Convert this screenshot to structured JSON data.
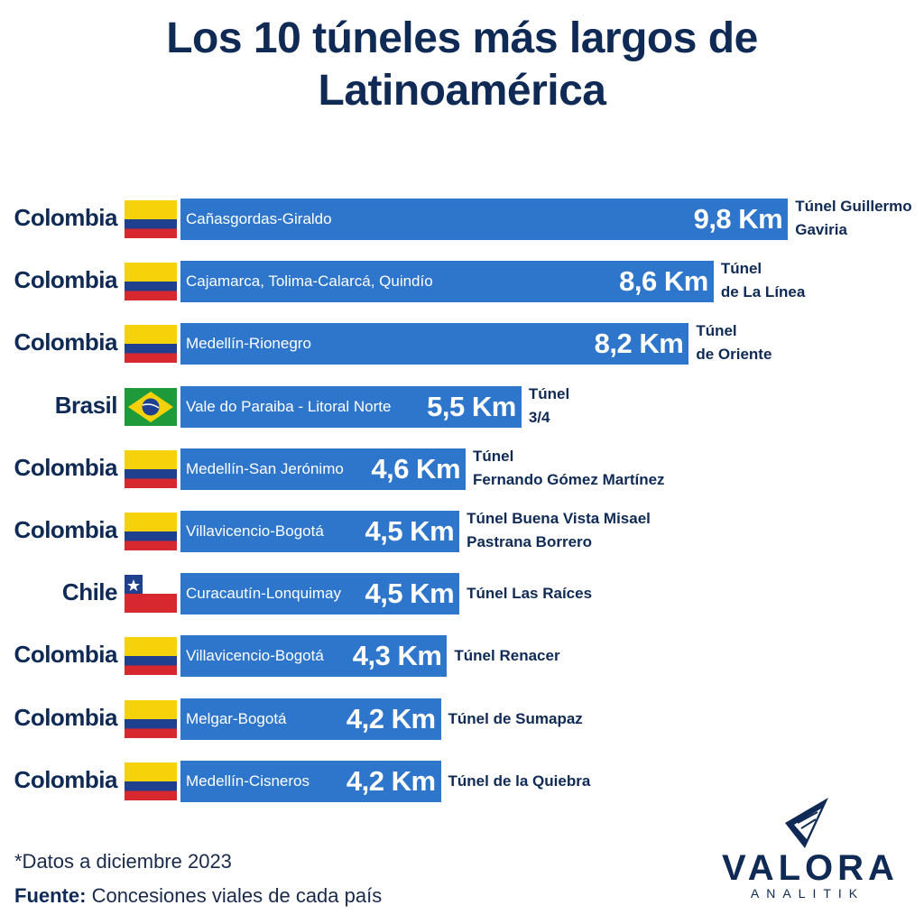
{
  "title_line1": "Los 10 túneles más largos de",
  "title_line2": "Latinoamérica",
  "footnote": "*Datos a diciembre 2023",
  "source_label": "Fuente:",
  "source_text": "Concesiones viales de cada país",
  "logo": {
    "word": "VALORA",
    "sub": "ANALITIK",
    "mark": "valora-chevron-logo"
  },
  "colors": {
    "bar": "#2e76cc",
    "title": "#0f2a55",
    "bar_text": "#ffffff"
  },
  "chart_data": {
    "type": "bar",
    "orientation": "horizontal",
    "unit": "Km",
    "title": "Los 10 túneles más largos de Latinoamérica",
    "rows": [
      {
        "country": "Colombia",
        "flag": "colombia-flag",
        "route": "Cañasgordas-Giraldo",
        "value": 9.8,
        "label": "9,8 Km",
        "tunnel": "Túnel Guillermo\nGaviria"
      },
      {
        "country": "Colombia",
        "flag": "colombia-flag",
        "route": "Cajamarca, Tolima-Calarcá, Quindío",
        "value": 8.6,
        "label": "8,6 Km",
        "tunnel": "Túnel\nde La Línea"
      },
      {
        "country": "Colombia",
        "flag": "colombia-flag",
        "route": "Medellín-Rionegro",
        "value": 8.2,
        "label": "8,2 Km",
        "tunnel": "Túnel\nde Oriente"
      },
      {
        "country": "Brasil",
        "flag": "brazil-flag",
        "route": "Vale do Paraiba - Litoral Norte",
        "value": 5.5,
        "label": "5,5 Km",
        "tunnel": "Túnel\n3/4"
      },
      {
        "country": "Colombia",
        "flag": "colombia-flag",
        "route": "Medellín-San Jerónimo",
        "value": 4.6,
        "label": "4,6 Km",
        "tunnel": "Túnel\nFernando Gómez Martínez"
      },
      {
        "country": "Colombia",
        "flag": "colombia-flag",
        "route": "Villavicencio-Bogotá",
        "value": 4.5,
        "label": "4,5 Km",
        "tunnel": "Túnel Buena Vista Misael\nPastrana Borrero"
      },
      {
        "country": "Chile",
        "flag": "chile-flag",
        "route": "Curacautín-Lonquimay",
        "value": 4.5,
        "label": "4,5 Km",
        "tunnel": "Túnel Las Raíces"
      },
      {
        "country": "Colombia",
        "flag": "colombia-flag",
        "route": "Villavicencio-Bogotá",
        "value": 4.3,
        "label": "4,3 Km",
        "tunnel": "Túnel Renacer"
      },
      {
        "country": "Colombia",
        "flag": "colombia-flag",
        "route": "Melgar-Bogotá",
        "value": 4.2,
        "label": "4,2 Km",
        "tunnel": "Túnel de Sumapaz"
      },
      {
        "country": "Colombia",
        "flag": "colombia-flag",
        "route": "Medellín-Cisneros",
        "value": 4.2,
        "label": "4,2 Km",
        "tunnel": "Túnel de la Quiebra"
      }
    ]
  }
}
